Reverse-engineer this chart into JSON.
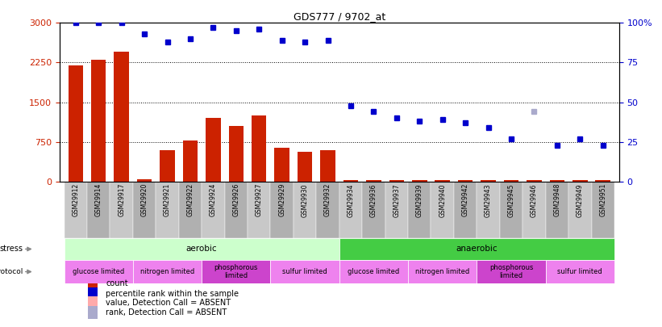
{
  "title": "GDS777 / 9702_at",
  "samples": [
    "GSM29912",
    "GSM29914",
    "GSM29917",
    "GSM29920",
    "GSM29921",
    "GSM29922",
    "GSM29924",
    "GSM29926",
    "GSM29927",
    "GSM29929",
    "GSM29930",
    "GSM29932",
    "GSM29934",
    "GSM29936",
    "GSM29937",
    "GSM29939",
    "GSM29940",
    "GSM29942",
    "GSM29943",
    "GSM29945",
    "GSM29946",
    "GSM29948",
    "GSM29949",
    "GSM29951"
  ],
  "count": [
    2200,
    2300,
    2450,
    50,
    600,
    780,
    1200,
    1050,
    1250,
    640,
    560,
    600,
    30,
    30,
    30,
    30,
    30,
    30,
    30,
    30,
    30,
    30,
    30,
    30
  ],
  "percentile_rank": [
    100,
    100,
    100,
    93,
    88,
    90,
    97,
    95,
    96,
    89,
    88,
    89,
    48,
    44,
    40,
    38,
    39,
    37,
    34,
    27,
    44,
    23,
    27,
    23
  ],
  "absent_rank": [
    false,
    false,
    false,
    false,
    false,
    false,
    false,
    false,
    false,
    false,
    false,
    false,
    false,
    false,
    false,
    false,
    false,
    false,
    false,
    false,
    true,
    false,
    false,
    false
  ],
  "ylim_left": [
    0,
    3000
  ],
  "ylim_right": [
    0,
    100
  ],
  "yticks_left": [
    0,
    750,
    1500,
    2250,
    3000
  ],
  "yticks_right": [
    0,
    25,
    50,
    75,
    100
  ],
  "ytick_right_labels": [
    "0",
    "25",
    "50",
    "75",
    "100%"
  ],
  "bar_color": "#CC2200",
  "dot_color": "#0000CC",
  "dot_absent_color": "#AAAACC",
  "stress_aerobic_color": "#CCFFCC",
  "stress_anaerobic_color": "#44CC44",
  "stress_groups": [
    {
      "label": "aerobic",
      "start": 0,
      "end": 12,
      "color": "#CCFFCC"
    },
    {
      "label": "anaerobic",
      "start": 12,
      "end": 24,
      "color": "#44CC44"
    }
  ],
  "growth_groups": [
    {
      "label": "glucose limited",
      "start": 0,
      "end": 3,
      "color": "#EE82EE"
    },
    {
      "label": "nitrogen limited",
      "start": 3,
      "end": 6,
      "color": "#EE82EE"
    },
    {
      "label": "phosphorous\nlimited",
      "start": 6,
      "end": 9,
      "color": "#CC44CC"
    },
    {
      "label": "sulfur limited",
      "start": 9,
      "end": 12,
      "color": "#EE82EE"
    },
    {
      "label": "glucose limited",
      "start": 12,
      "end": 15,
      "color": "#EE82EE"
    },
    {
      "label": "nitrogen limited",
      "start": 15,
      "end": 18,
      "color": "#EE82EE"
    },
    {
      "label": "phosphorous\nlimited",
      "start": 18,
      "end": 21,
      "color": "#CC44CC"
    },
    {
      "label": "sulfur limited",
      "start": 21,
      "end": 24,
      "color": "#EE82EE"
    }
  ],
  "legend_items": [
    {
      "label": "count",
      "color": "#CC2200"
    },
    {
      "label": "percentile rank within the sample",
      "color": "#0000CC"
    },
    {
      "label": "value, Detection Call = ABSENT",
      "color": "#FFAAAA"
    },
    {
      "label": "rank, Detection Call = ABSENT",
      "color": "#AAAACC"
    }
  ],
  "tick_box_colors": [
    "#CCCCCC",
    "#AAAAAA"
  ]
}
